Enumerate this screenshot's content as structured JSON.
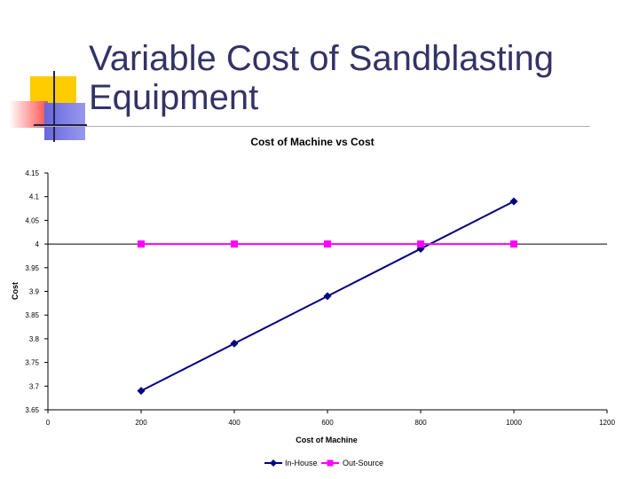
{
  "slide": {
    "title": "Variable Cost of Sandblasting Equipment"
  },
  "colors": {
    "title": "#333366",
    "in_house": "#000080",
    "out_source": "#ff00ff",
    "deco_yellow": "#ffcc00",
    "deco_blue": "#3333cc",
    "deco_red": "#ff3333"
  },
  "chart_data": {
    "type": "line",
    "title": "Cost of Machine vs Cost",
    "xlabel": "Cost of Machine",
    "ylabel": "Cost",
    "xlim": [
      0,
      1200
    ],
    "ylim": [
      3.65,
      4.15
    ],
    "x_ticks": [
      "0",
      "200",
      "400",
      "600",
      "800",
      "1000",
      "1200"
    ],
    "y_ticks": [
      "3.65",
      "3.7",
      "3.75",
      "3.8",
      "3.85",
      "3.9",
      "3.95",
      "4",
      "4.05",
      "4.1",
      "4.15"
    ],
    "grid": "major-y-at-4",
    "legend_position": "bottom",
    "series": [
      {
        "name": "In-House",
        "marker": "diamond",
        "color": "#000080",
        "x": [
          200,
          400,
          600,
          800,
          1000
        ],
        "y": [
          3.69,
          3.79,
          3.89,
          3.99,
          4.09
        ]
      },
      {
        "name": "Out-Source",
        "marker": "square",
        "color": "#ff00ff",
        "x": [
          200,
          400,
          600,
          800,
          1000
        ],
        "y": [
          4.0,
          4.0,
          4.0,
          4.0,
          4.0
        ]
      }
    ]
  }
}
